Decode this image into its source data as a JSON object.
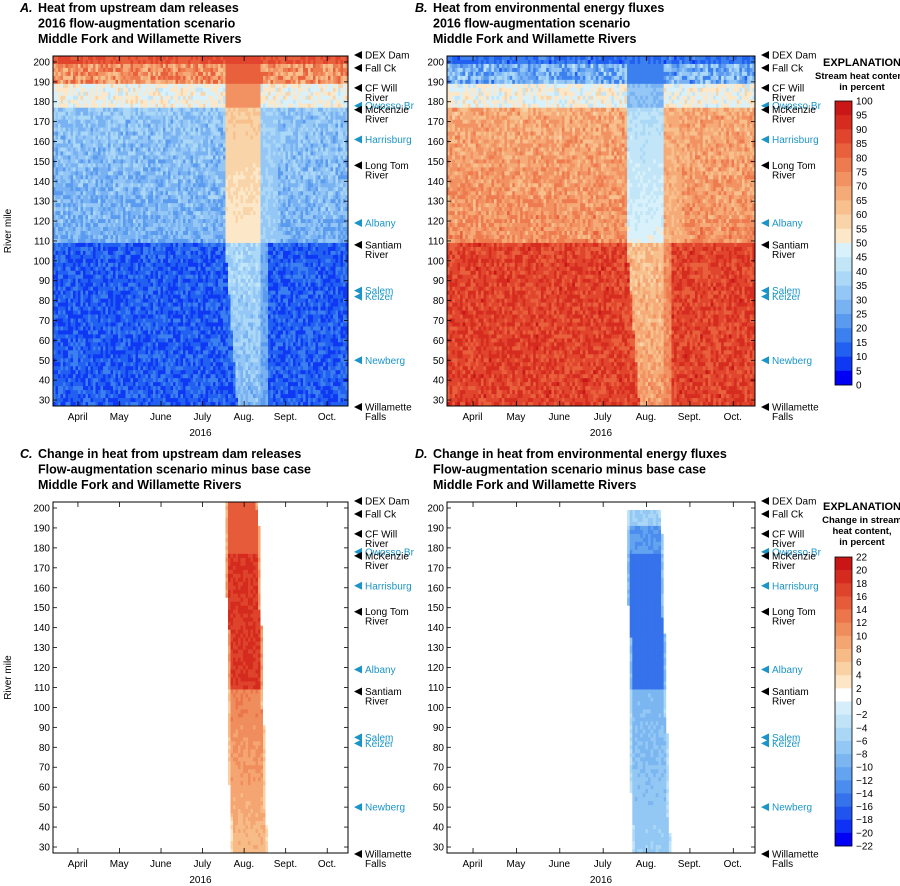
{
  "chart_data": [
    {
      "id": "A",
      "type": "heatmap",
      "letter": "A.",
      "title_lines": [
        "Heat from upstream dam releases",
        "2016 flow-augmentation scenario",
        "Middle Fork and Willamette Rivers"
      ],
      "xlabel": "2016",
      "ylabel": "River mile",
      "x_ticks": [
        "April",
        "May",
        "June",
        "July",
        "Aug.",
        "Sept.",
        "Oct."
      ],
      "y_ticks": [
        30,
        40,
        50,
        60,
        70,
        80,
        90,
        100,
        110,
        120,
        130,
        140,
        150,
        160,
        170,
        180,
        190,
        200
      ],
      "ylim": [
        27,
        203
      ],
      "x_range_months": [
        3.4,
        10.5
      ],
      "scale": "stream_heat",
      "pattern": "dam"
    },
    {
      "id": "B",
      "type": "heatmap",
      "letter": "B.",
      "title_lines": [
        "Heat from environmental energy fluxes",
        "2016 flow-augmentation scenario",
        "Middle Fork and Willamette Rivers"
      ],
      "xlabel": "2016",
      "ylabel": "",
      "x_ticks": [
        "April",
        "May",
        "June",
        "July",
        "Aug.",
        "Sept.",
        "Oct."
      ],
      "y_ticks": [
        30,
        40,
        50,
        60,
        70,
        80,
        90,
        100,
        110,
        120,
        130,
        140,
        150,
        160,
        170,
        180,
        190,
        200
      ],
      "ylim": [
        27,
        203
      ],
      "x_range_months": [
        3.4,
        10.5
      ],
      "scale": "stream_heat",
      "pattern": "env"
    },
    {
      "id": "C",
      "type": "heatmap",
      "letter": "C.",
      "title_lines": [
        "Change in heat from upstream dam releases",
        "Flow-augmentation scenario minus base case",
        "Middle Fork and Willamette Rivers"
      ],
      "xlabel": "2016",
      "ylabel": "River mile",
      "x_ticks": [
        "April",
        "May",
        "June",
        "July",
        "Aug.",
        "Sept.",
        "Oct."
      ],
      "y_ticks": [
        30,
        40,
        50,
        60,
        70,
        80,
        90,
        100,
        110,
        120,
        130,
        140,
        150,
        160,
        170,
        180,
        190,
        200
      ],
      "ylim": [
        27,
        203
      ],
      "x_range_months": [
        3.4,
        10.5
      ],
      "scale": "change",
      "pattern": "dam_change"
    },
    {
      "id": "D",
      "type": "heatmap",
      "letter": "D.",
      "title_lines": [
        "Change in heat from environmental energy fluxes",
        "Flow-augmentation scenario minus base case",
        "Middle Fork and Willamette Rivers"
      ],
      "xlabel": "2016",
      "ylabel": "",
      "x_ticks": [
        "April",
        "May",
        "June",
        "July",
        "Aug.",
        "Sept.",
        "Oct."
      ],
      "y_ticks": [
        30,
        40,
        50,
        60,
        70,
        80,
        90,
        100,
        110,
        120,
        130,
        140,
        150,
        160,
        170,
        180,
        190,
        200
      ],
      "ylim": [
        27,
        203
      ],
      "x_range_months": [
        3.4,
        10.5
      ],
      "scale": "change",
      "pattern": "env_change"
    }
  ],
  "river_labels": [
    {
      "lines": [
        "DEX Dam"
      ],
      "mile": 203.5,
      "color": "black"
    },
    {
      "lines": [
        "Fall Ck"
      ],
      "mile": 197,
      "color": "black"
    },
    {
      "lines": [
        "CF Will",
        "River"
      ],
      "mile": 187,
      "color": "black"
    },
    {
      "lines": [
        "Owosso Br"
      ],
      "mile": 178,
      "color": "blue"
    },
    {
      "lines": [
        "McKenzie",
        "River"
      ],
      "mile": 176,
      "color": "black"
    },
    {
      "lines": [
        "Harrisburg"
      ],
      "mile": 161,
      "color": "blue"
    },
    {
      "lines": [
        "Long Tom",
        "River"
      ],
      "mile": 148,
      "color": "black"
    },
    {
      "lines": [
        "Albany"
      ],
      "mile": 119,
      "color": "blue"
    },
    {
      "lines": [
        "Santiam",
        "River"
      ],
      "mile": 108,
      "color": "black"
    },
    {
      "lines": [
        "Salem"
      ],
      "mile": 85,
      "color": "blue"
    },
    {
      "lines": [
        "Keizer"
      ],
      "mile": 82,
      "color": "blue"
    },
    {
      "lines": [
        "Newberg"
      ],
      "mile": 50,
      "color": "blue"
    },
    {
      "lines": [
        "Willamette",
        "Falls"
      ],
      "mile": 26.5,
      "color": "black"
    }
  ],
  "legends": {
    "stream_heat": {
      "heading": "EXPLANATION",
      "subtitle_lines": [
        "Stream heat content,",
        "in percent"
      ],
      "ticks": [
        100,
        95,
        90,
        85,
        80,
        75,
        70,
        65,
        60,
        55,
        50,
        45,
        40,
        35,
        30,
        25,
        20,
        15,
        10,
        5,
        0
      ],
      "min": 0,
      "max": 100
    },
    "change": {
      "heading": "EXPLANATION",
      "subtitle_lines": [
        "Change in stream",
        "heat content,",
        "in percent"
      ],
      "ticks": [
        22,
        20,
        18,
        16,
        14,
        12,
        10,
        8,
        6,
        4,
        2,
        0,
        -2,
        -4,
        -6,
        -8,
        -10,
        -12,
        -14,
        -16,
        -18,
        -20,
        -22
      ],
      "min": -22,
      "max": 22
    }
  },
  "colors": {
    "stream_heat": [
      "#0000f5",
      "#0f38f5",
      "#2160f0",
      "#3b80ee",
      "#5a9aef",
      "#79b2f2",
      "#94c7f5",
      "#acd8f7",
      "#c2e6f8",
      "#d8f1fa",
      "#fce8c8",
      "#f9d4a8",
      "#f7c08d",
      "#f5aa77",
      "#f29262",
      "#ee7a4f",
      "#e9603d",
      "#e1452d",
      "#d62c20",
      "#c91717"
    ],
    "change": [
      "#0000f5",
      "#0f30f5",
      "#2154ef",
      "#3572ec",
      "#4b8dee",
      "#63a3ef",
      "#7bb6f1",
      "#93c8f4",
      "#aad7f6",
      "#c0e3f8",
      "#d6eefa",
      "#ffffff",
      "#fce6c6",
      "#f9d1a4",
      "#f7bb88",
      "#f4a571",
      "#f08d5d",
      "#ec754b",
      "#e65c3a",
      "#de432b",
      "#d52b1f",
      "#c81616"
    ]
  }
}
